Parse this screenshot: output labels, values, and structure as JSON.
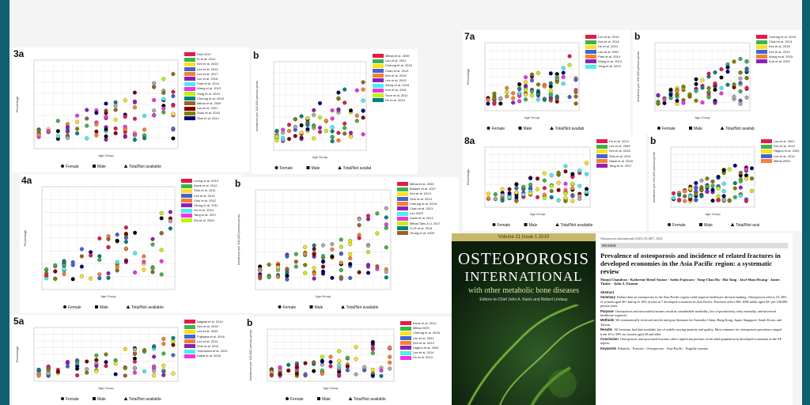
{
  "panels": [
    {
      "label": "3a",
      "y_label": "Percentage",
      "x_label": "Age Group",
      "legend": [
        "Female",
        "Male",
        "Total/Not available"
      ],
      "entries": [
        "Shin 2017",
        "Ki et al. 2014",
        "Kim et al. 2016",
        "Lee et al. 2013",
        "Lee et al. 2017",
        "Lim et al. 2016",
        "Park et al. 2014",
        "Wang et al. 2013",
        "Yang et al. 2010",
        "Cheung et al. 2018",
        "Mithal et al. 2009",
        "Lau et al. 2001",
        "Zhao et al. 2016",
        "Shin et al. 2012"
      ]
    },
    {
      "label": "b",
      "y_label": "Incidence per 100,000 person-years",
      "x_label": "Age Group",
      "legend": [
        "Female",
        "Male",
        "Total/Not available"
      ],
      "entries": [
        "Mithal et al. 2009",
        "Lau et al. 2001",
        "Cheung et al. 2018",
        "Chau et al. 2013",
        "Kim et al. 2016",
        "Lee et al. 2013",
        "Wong et al. 2015",
        "Koh et al. 2001",
        "Yoon et al. 2011",
        "Ho et al. 2014"
      ]
    },
    {
      "label": "4a",
      "y_label": "Percentage",
      "x_label": "Age Group",
      "legend": [
        "Female",
        "Male",
        "Total/Not available"
      ],
      "entries": [
        "Leung et al. 2014",
        "Kwok et al. 2012",
        "Shin et al. 2011",
        "Lee et al. 2013",
        "Chiu et al. 2012",
        "Yeung et al. 2011",
        "Ho et al. 2014",
        "Tang et al. 2017",
        "Wu et al. 2009"
      ]
    },
    {
      "label": "b",
      "y_label": "Incidence per 100,000 person-years",
      "x_label": "Age Group",
      "legend": [
        "Female",
        "Male",
        "Total/Not available"
      ],
      "entries": [
        "Mithal et al. 2009",
        "Ballane et al. 2017",
        "Kim et al. 2013",
        "Shin et al. 2013",
        "Cheung et al. 2018",
        "Chau et al. 2013",
        "Lau 2009",
        "Kanis et al. 2012",
        "Mithal Tabs & LI 2017",
        "Yu R et al. 2014",
        "Yeung et al. 2009"
      ]
    },
    {
      "label": "5a",
      "y_label": "Percentage",
      "x_label": "Age Group",
      "legend": [
        "Female",
        "Male",
        "Total/Not available"
      ],
      "entries": [
        "Nagata et al. 2014",
        "Kim et al. 2016",
        "Lee et al. 2009",
        "Fujiwara et al. 2016",
        "Lee et al. 2014",
        "Shin et al. 2011",
        "Yoshimura et al. 2010",
        "Sakai et al. 2018"
      ]
    },
    {
      "label": "b",
      "y_label": "Incidence per 100,000 person-years",
      "x_label": "Age Group",
      "legend": [
        "Female",
        "Male",
        "Total/Not available"
      ],
      "entries": [
        "Kwok et al. 2012",
        "Mithal 2009",
        "Cheung et al. 2018",
        "Lau et al. 2001",
        "Kim et al. 2013",
        "Hagino et al. 2009",
        "Lee et al. 2014",
        "Ho et al. 2014"
      ]
    },
    {
      "label": "7a",
      "y_label": "Percentage",
      "x_label": "Age Group",
      "legend": [
        "Female",
        "Male",
        "Total/Not available"
      ],
      "entries": [
        "Lee et al. 2013",
        "Kim et al. 2016",
        "Ho et al. 2014",
        "Lau et al. 2001",
        "Park et al. 2014",
        "Wang et al. 2013",
        "Yang et al. 2010"
      ]
    },
    {
      "label": "b",
      "y_label": "Incidence per 100,000 person-years",
      "x_label": "Age Group",
      "legend": [
        "Female",
        "Male",
        "Total/Not available"
      ],
      "entries": [
        "Cheung et al. 2018",
        "Chau et al. 2013",
        "Kim et al. 2016",
        "Lee et al. 2013",
        "Wong et al. 2015",
        "Koh et al. 2001"
      ]
    },
    {
      "label": "8a",
      "y_label": "Percentage",
      "x_label": "Age Group",
      "legend": [
        "Female",
        "Male",
        "Total/Not available"
      ],
      "entries": [
        "Ho et al. 2014",
        "Lee et al. 2009",
        "Kim et al. 2016",
        "Shin et al. 2011",
        "Sakai et al. 2018",
        "Tang et al. 2017"
      ]
    },
    {
      "label": "b",
      "y_label": "Incidence per 100,000 person-years",
      "x_label": "Age Group",
      "legend": [
        "Female",
        "Male",
        "Total/Not available"
      ],
      "entries": [
        "Lau et al. 2001",
        "Kim et al. 2013",
        "Hagino et al. 2009",
        "Lee et al. 2014",
        "Mithal 2009"
      ]
    }
  ],
  "cover": {
    "volume": "Volume 21 Issue 1 2010",
    "title_line1": "OSTEOPOROSIS",
    "title_line2": "INTERNATIONAL",
    "subtitle": "with other metabolic bone diseases",
    "editors": "Editors-in-Chief John A. Kanis and Robert Lindsay"
  },
  "article": {
    "journal_line": "Osteoporosis International (2021) 33:1007–1024",
    "review_label": "REVIEW",
    "title": "Prevalence of osteoporosis and incidence of related fractures in developed economies in the Asia Pacific region: a systematic review",
    "authors": "Manju Chandran · Katherine Brind'Amour · Saeko Fujiwara · Yong-Chan Ha · Hai Tang · Jawl-Shan Hwang · James Tinker · John A. Eisman",
    "sections": [
      {
        "heading": "Abstract",
        "text": ""
      },
      {
        "heading": "Summary",
        "text": "Robust data on osteoporosis in the Asia-Pacific region could improve healthcare decision-making. Osteoporosis affects 10–30% of women aged 40+ and up to 10% of men in 7 developed economies in Asia Pacific. Fractures affect 500–1000 adults aged 50+ per 100,000 person-years."
      },
      {
        "heading": "Purpose",
        "text": "Osteoporosis and associated fractures result in considerable morbidity, loss of productivity, early mortality, and increased healthcare expenses."
      },
      {
        "heading": "Methods",
        "text": "We systematically reviewed articles and gray literature for Australia, China, Hong Kong, Japan, Singapore, South Korea, and Taiwan."
      },
      {
        "heading": "Results",
        "text": "All locations had data available, but of widely varying quantity and quality. Most estimates for osteoporosis prevalence ranged from 10 to 30% for women aged 40 and older."
      },
      {
        "heading": "Conclusion",
        "text": "Osteoporosis and associated fractures affect significant portions of the adult population in developed economies in the AP region."
      },
      {
        "heading": "Keywords",
        "text": "Ethnicity · Fracture · Osteoporosis · Asia-Pacific · Fragility fracture"
      }
    ]
  }
}
